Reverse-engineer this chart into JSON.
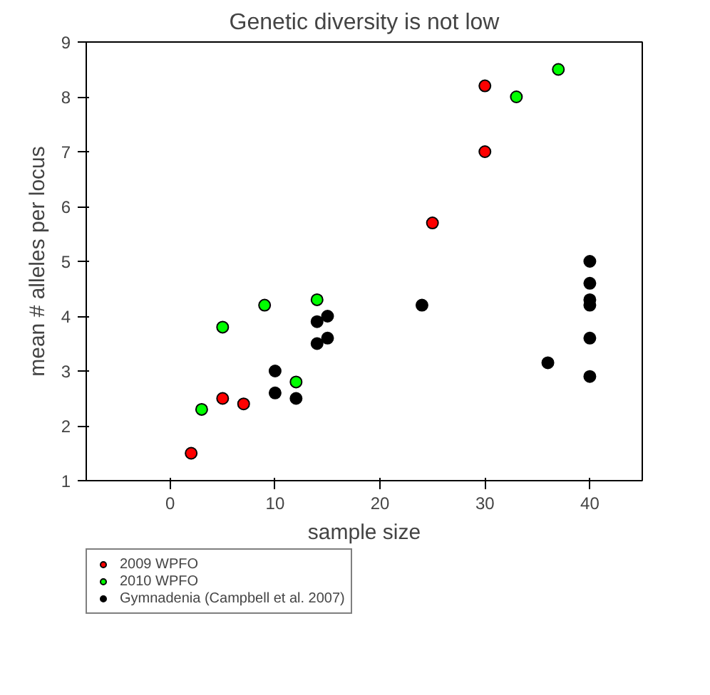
{
  "chart_data": {
    "type": "scatter",
    "title": "Genetic diversity is not low",
    "xlabel": "sample size",
    "ylabel": "mean # alleles per locus",
    "xlim": [
      -8,
      45
    ],
    "xticks": [
      0,
      10,
      20,
      30,
      40
    ],
    "ylim": [
      1,
      9
    ],
    "yticks": [
      1,
      2,
      3,
      4,
      5,
      6,
      7,
      8,
      9
    ],
    "grid": false,
    "legend": "bottom left",
    "marker": "circle",
    "series": [
      {
        "name": "2009 WPFO",
        "color": "#ff0000",
        "x": [
          2,
          5,
          7,
          25,
          30,
          30
        ],
        "values": [
          1.5,
          2.5,
          2.4,
          5.7,
          8.2,
          7.0
        ]
      },
      {
        "name": "2010 WPFO",
        "color": "#00ff00",
        "x": [
          3,
          5,
          9,
          12,
          14,
          33,
          37
        ],
        "values": [
          2.3,
          3.8,
          4.2,
          2.8,
          4.3,
          8.0,
          8.5
        ]
      },
      {
        "name": "Gymnadenia (Campbell et al. 2007)",
        "color": "#000000",
        "x": [
          10,
          10,
          12,
          14,
          14,
          15,
          15,
          24,
          36,
          40,
          40,
          40,
          40,
          40,
          40
        ],
        "values": [
          3.0,
          2.6,
          2.5,
          3.9,
          3.5,
          4.0,
          3.6,
          4.2,
          3.15,
          5.0,
          4.6,
          4.3,
          4.2,
          3.6,
          2.9
        ]
      }
    ]
  }
}
